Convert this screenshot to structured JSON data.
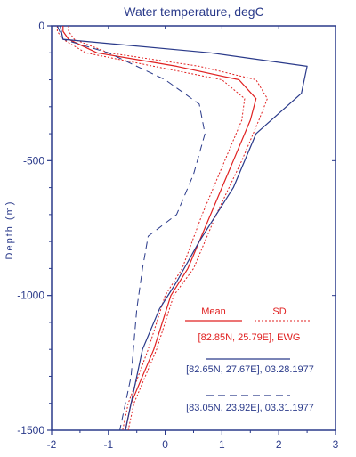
{
  "chart_data": {
    "type": "line",
    "title": "Water temperature, degC",
    "xlabel": "",
    "ylabel": "Depth (m)",
    "xlim": [
      -2,
      3
    ],
    "ylim": [
      -1500,
      0
    ],
    "x_ticks": [
      "-2",
      "-1",
      "0",
      "1",
      "2",
      "3"
    ],
    "y_ticks": [
      "0",
      "-500",
      "-1000",
      "-1500"
    ],
    "x_tick_values": [
      -2,
      -1,
      0,
      1,
      2,
      3
    ],
    "y_tick_values": [
      0,
      -500,
      -1000,
      -1500
    ],
    "legend_labels": {
      "mean": "Mean",
      "sd": "SD",
      "ewg": "[82.85N, 25.79E], EWG",
      "st1": "[82.65N, 27.67E], 03.28.1977",
      "st2": "[83.05N, 23.92E], 03.31.1977"
    },
    "colors": {
      "axis": "#2a3a8a",
      "ewg": "#e02020",
      "station": "#2a3a8a"
    },
    "series": [
      {
        "key": "mean",
        "style": "solid",
        "color": "#e02020",
        "points": [
          [
            -1.8,
            0
          ],
          [
            -1.8,
            -20
          ],
          [
            -1.7,
            -50
          ],
          [
            -1.2,
            -100
          ],
          [
            0.2,
            -150
          ],
          [
            1.3,
            -200
          ],
          [
            1.6,
            -270
          ],
          [
            1.5,
            -350
          ],
          [
            1.2,
            -500
          ],
          [
            0.8,
            -700
          ],
          [
            0.4,
            -900
          ],
          [
            0.1,
            -1000
          ],
          [
            -0.2,
            -1200
          ],
          [
            -0.6,
            -1400
          ],
          [
            -0.7,
            -1500
          ]
        ]
      },
      {
        "key": "sd-low",
        "style": "dotted",
        "color": "#e02020",
        "points": [
          [
            -1.9,
            0
          ],
          [
            -1.9,
            -20
          ],
          [
            -1.8,
            -50
          ],
          [
            -1.4,
            -100
          ],
          [
            -0.2,
            -150
          ],
          [
            1.0,
            -200
          ],
          [
            1.4,
            -270
          ],
          [
            1.35,
            -350
          ],
          [
            1.05,
            -500
          ],
          [
            0.65,
            -700
          ],
          [
            0.3,
            -900
          ],
          [
            0.0,
            -1000
          ],
          [
            -0.3,
            -1200
          ],
          [
            -0.65,
            -1400
          ],
          [
            -0.75,
            -1500
          ]
        ]
      },
      {
        "key": "sd-high",
        "style": "dotted",
        "color": "#e02020",
        "points": [
          [
            -1.7,
            0
          ],
          [
            -1.7,
            -20
          ],
          [
            -1.6,
            -50
          ],
          [
            -1.0,
            -100
          ],
          [
            0.6,
            -150
          ],
          [
            1.6,
            -200
          ],
          [
            1.8,
            -270
          ],
          [
            1.65,
            -350
          ],
          [
            1.35,
            -500
          ],
          [
            0.9,
            -700
          ],
          [
            0.5,
            -900
          ],
          [
            0.15,
            -1000
          ],
          [
            -0.15,
            -1200
          ],
          [
            -0.55,
            -1400
          ],
          [
            -0.65,
            -1500
          ]
        ]
      },
      {
        "key": "st1",
        "style": "solid",
        "color": "#2a3a8a",
        "points": [
          [
            -1.85,
            0
          ],
          [
            -1.8,
            -50
          ],
          [
            0.8,
            -100
          ],
          [
            2.5,
            -150
          ],
          [
            2.4,
            -250
          ],
          [
            1.6,
            -400
          ],
          [
            1.2,
            -600
          ],
          [
            0.6,
            -800
          ],
          [
            0.2,
            -950
          ],
          [
            -0.1,
            -1050
          ],
          [
            -0.4,
            -1200
          ],
          [
            -0.7,
            -1500
          ]
        ]
      },
      {
        "key": "st2",
        "style": "dashed",
        "color": "#2a3a8a",
        "points": [
          [
            -1.9,
            0
          ],
          [
            -1.8,
            -50
          ],
          [
            -1.0,
            -100
          ],
          [
            0.0,
            -200
          ],
          [
            0.6,
            -290
          ],
          [
            0.7,
            -400
          ],
          [
            0.5,
            -550
          ],
          [
            0.2,
            -700
          ],
          [
            -0.3,
            -780
          ],
          [
            -0.4,
            -900
          ],
          [
            -0.5,
            -1050
          ],
          [
            -0.6,
            -1300
          ],
          [
            -0.8,
            -1500
          ]
        ]
      }
    ]
  }
}
